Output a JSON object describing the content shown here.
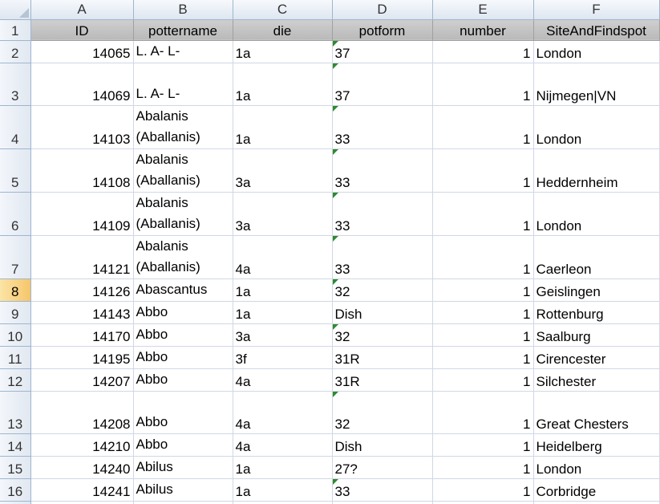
{
  "columns": [
    "A",
    "B",
    "C",
    "D",
    "E",
    "F"
  ],
  "headers": {
    "id": "ID",
    "pottername": "pottername",
    "die": "die",
    "potform": "potform",
    "number": "number",
    "site": "SiteAndFindspot"
  },
  "header_row_label": "1",
  "rows": [
    {
      "row": "2",
      "id": "14065",
      "pottername": "L. A- L-",
      "die": "1a",
      "potform": "37",
      "number": "1",
      "site": "London",
      "pf_text": true
    },
    {
      "row": "3",
      "id": "14069",
      "pottername": "L. A- L-",
      "die": "1a",
      "potform": "37",
      "number": "1",
      "site": "Nijmegen|VN",
      "pf_text": true
    },
    {
      "row": "4",
      "id": "14103",
      "pottername": "Abalanis (Aballanis)",
      "die": "1a",
      "potform": "33",
      "number": "1",
      "site": "London",
      "pf_text": true
    },
    {
      "row": "5",
      "id": "14108",
      "pottername": "Abalanis (Aballanis)",
      "die": "3a",
      "potform": "33",
      "number": "1",
      "site": "Heddernheim",
      "pf_text": true
    },
    {
      "row": "6",
      "id": "14109",
      "pottername": "Abalanis (Aballanis)",
      "die": "3a",
      "potform": "33",
      "number": "1",
      "site": "London",
      "pf_text": true
    },
    {
      "row": "7",
      "id": "14121",
      "pottername": "Abalanis (Aballanis)",
      "die": "4a",
      "potform": "33",
      "number": "1",
      "site": "Caerleon",
      "pf_text": true
    },
    {
      "row": "8",
      "id": "14126",
      "pottername": "Abascantus",
      "die": "1a",
      "potform": "32",
      "number": "1",
      "site": "Geislingen",
      "pf_text": true,
      "selected": true
    },
    {
      "row": "9",
      "id": "14143",
      "pottername": "Abbo",
      "die": "1a",
      "potform": "Dish",
      "number": "1",
      "site": "Rottenburg",
      "pf_text": false
    },
    {
      "row": "10",
      "id": "14170",
      "pottername": "Abbo",
      "die": "3a",
      "potform": "32",
      "number": "1",
      "site": "Saalburg",
      "pf_text": true
    },
    {
      "row": "11",
      "id": "14195",
      "pottername": "Abbo",
      "die": "3f",
      "potform": "31R",
      "number": "1",
      "site": "Cirencester",
      "pf_text": false
    },
    {
      "row": "12",
      "id": "14207",
      "pottername": "Abbo",
      "die": "4a",
      "potform": "31R",
      "number": "1",
      "site": "Silchester",
      "pf_text": false
    },
    {
      "row": "13",
      "id": "14208",
      "pottername": "Abbo",
      "die": "4a",
      "potform": "32",
      "number": "1",
      "site": "Great Chesters",
      "pf_text": true
    },
    {
      "row": "14",
      "id": "14210",
      "pottername": "Abbo",
      "die": "4a",
      "potform": "Dish",
      "number": "1",
      "site": "Heidelberg",
      "pf_text": false
    },
    {
      "row": "15",
      "id": "14240",
      "pottername": "Abilus",
      "die": "1a",
      "potform": "27?",
      "number": "1",
      "site": "London",
      "pf_text": false
    },
    {
      "row": "16",
      "id": "14241",
      "pottername": "Abilus",
      "die": "1a",
      "potform": "33",
      "number": "1",
      "site": "Corbridge",
      "pf_text": true
    }
  ],
  "colors": {
    "header_fill": "#c0c0c0",
    "selected_row_header": "#f6c66a",
    "gridline": "#d0d7e5",
    "error_indicator": "#2e8b2e"
  }
}
